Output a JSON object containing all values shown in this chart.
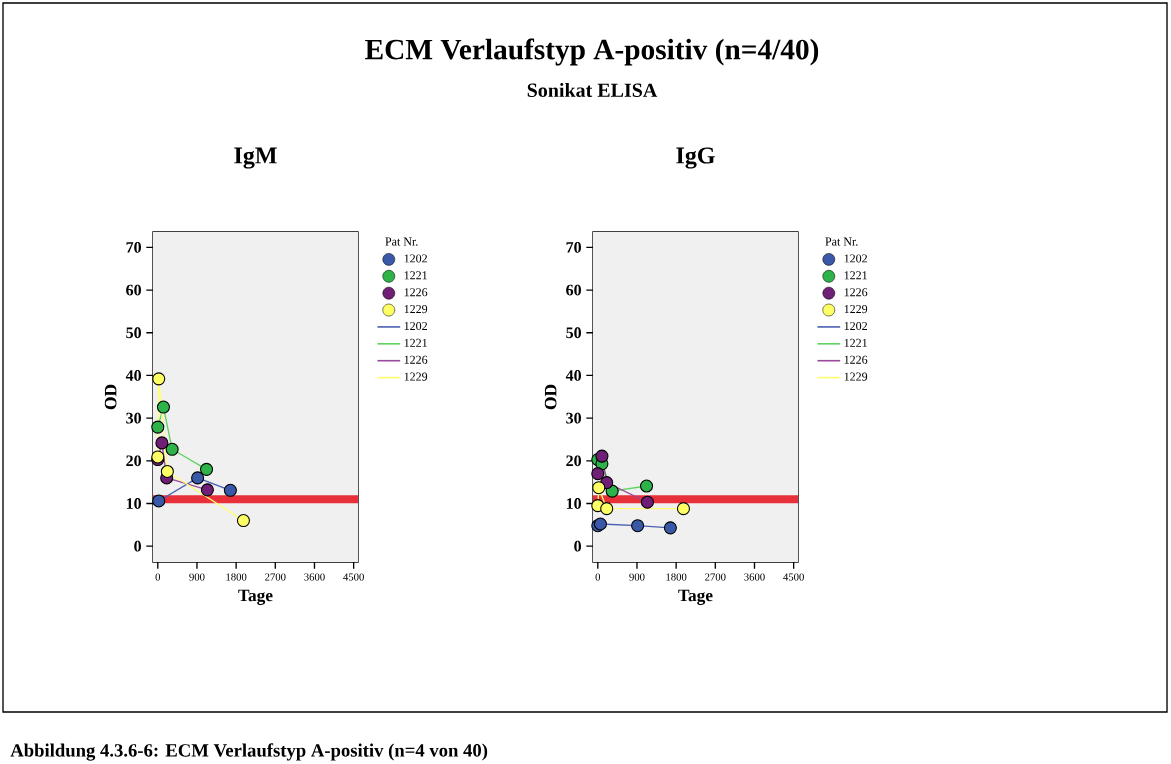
{
  "chart_data": [
    {
      "type": "scatter",
      "title": "IgM",
      "xlabel": "Tage",
      "ylabel": "OD",
      "legend_title": "Pat Nr.",
      "legend": "right",
      "annotations": [
        "ECM Verlaufstyp A-positiv (n=4/40)",
        "Sonikat ELISA",
        "Abbildung 4.3.6-6: ECM Verlaufstyp A-positiv (n=4 von 40)"
      ],
      "xlim": [
        -110,
        4600
      ],
      "ylim": [
        -3.7,
        73.6
      ],
      "xticks": [
        0,
        900,
        1800,
        2700,
        3600,
        4500
      ],
      "yticks": [
        0,
        10,
        20,
        30,
        40,
        50,
        60,
        70
      ],
      "ref_lines": [
        {
          "axis": "y",
          "value": 11,
          "color": "#e8303a"
        }
      ],
      "series": [
        {
          "name": "1202",
          "marker": "circle",
          "color": "#3a58a8",
          "x": [
            22,
            915,
            1668
          ],
          "values": [
            10.6,
            16.0,
            13.1
          ]
        },
        {
          "name": "1221",
          "marker": "circle",
          "color": "#2db34a",
          "x": [
            0,
            130,
            330,
            1120
          ],
          "values": [
            27.9,
            32.6,
            22.7,
            18.0
          ]
        },
        {
          "name": "1226",
          "marker": "circle",
          "color": "#6f1f75",
          "x": [
            0,
            95,
            205,
            1140
          ],
          "values": [
            20.3,
            24.2,
            16.0,
            13.2
          ]
        },
        {
          "name": "1229",
          "marker": "circle",
          "color": "#ffff66",
          "x": [
            0,
            22,
            220,
            1968
          ],
          "values": [
            20.9,
            39.2,
            17.5,
            6.0
          ]
        },
        {
          "name": "1202",
          "type": "line",
          "marker": "none",
          "color": "#4a5fb0",
          "x": [
            22,
            915,
            1668
          ],
          "values": [
            10.6,
            16.0,
            13.1
          ]
        },
        {
          "name": "1221",
          "type": "line",
          "marker": "none",
          "color": "#5fd35f",
          "x": [
            0,
            130,
            330,
            1120
          ],
          "values": [
            27.9,
            32.6,
            22.7,
            18.0
          ]
        },
        {
          "name": "1226",
          "type": "line",
          "marker": "none",
          "color": "#9b4aa0",
          "x": [
            0,
            95,
            205,
            1140
          ],
          "values": [
            20.3,
            24.2,
            16.0,
            13.2
          ]
        },
        {
          "name": "1229",
          "type": "line",
          "marker": "none",
          "color": "#ffff70",
          "x": [
            0,
            22,
            220,
            1968
          ],
          "values": [
            20.9,
            39.2,
            17.5,
            6.0
          ]
        }
      ]
    },
    {
      "type": "scatter",
      "title": "IgG",
      "xlabel": "Tage",
      "ylabel": "OD",
      "legend_title": "Pat Nr.",
      "legend": "right",
      "xlim": [
        -110,
        4600
      ],
      "ylim": [
        -3.7,
        73.6
      ],
      "xticks": [
        0,
        900,
        1800,
        2700,
        3600,
        4500
      ],
      "yticks": [
        0,
        10,
        20,
        30,
        40,
        50,
        60,
        70
      ],
      "ref_lines": [
        {
          "axis": "y",
          "value": 11,
          "color": "#e8303a"
        }
      ],
      "series": [
        {
          "name": "1202",
          "marker": "circle",
          "color": "#3a58a8",
          "x": [
            0,
            60,
            915,
            1668
          ],
          "values": [
            4.8,
            5.2,
            4.8,
            4.3
          ]
        },
        {
          "name": "1221",
          "marker": "circle",
          "color": "#2db34a",
          "x": [
            0,
            95,
            330,
            1120
          ],
          "values": [
            20.3,
            19.3,
            12.9,
            14.1
          ]
        },
        {
          "name": "1226",
          "marker": "circle",
          "color": "#6f1f75",
          "x": [
            0,
            95,
            205,
            1140
          ],
          "values": [
            17.0,
            21.1,
            14.9,
            10.3
          ]
        },
        {
          "name": "1229",
          "marker": "circle",
          "color": "#ffff66",
          "x": [
            0,
            22,
            205,
            1968
          ],
          "values": [
            9.5,
            13.7,
            8.8,
            8.8
          ]
        },
        {
          "name": "1202",
          "type": "line",
          "marker": "none",
          "color": "#4a5fb0",
          "x": [
            0,
            60,
            915,
            1668
          ],
          "values": [
            4.8,
            5.2,
            4.8,
            4.3
          ]
        },
        {
          "name": "1221",
          "type": "line",
          "marker": "none",
          "color": "#5fd35f",
          "x": [
            0,
            95,
            330,
            1120
          ],
          "values": [
            20.3,
            19.3,
            12.9,
            14.1
          ]
        },
        {
          "name": "1226",
          "type": "line",
          "marker": "none",
          "color": "#9b4aa0",
          "x": [
            0,
            95,
            205,
            1140
          ],
          "values": [
            17.0,
            21.1,
            14.9,
            10.3
          ]
        },
        {
          "name": "1229",
          "type": "line",
          "marker": "none",
          "color": "#ffff70",
          "x": [
            0,
            22,
            205,
            1968
          ],
          "values": [
            9.5,
            13.7,
            8.8,
            8.8
          ]
        }
      ]
    }
  ]
}
